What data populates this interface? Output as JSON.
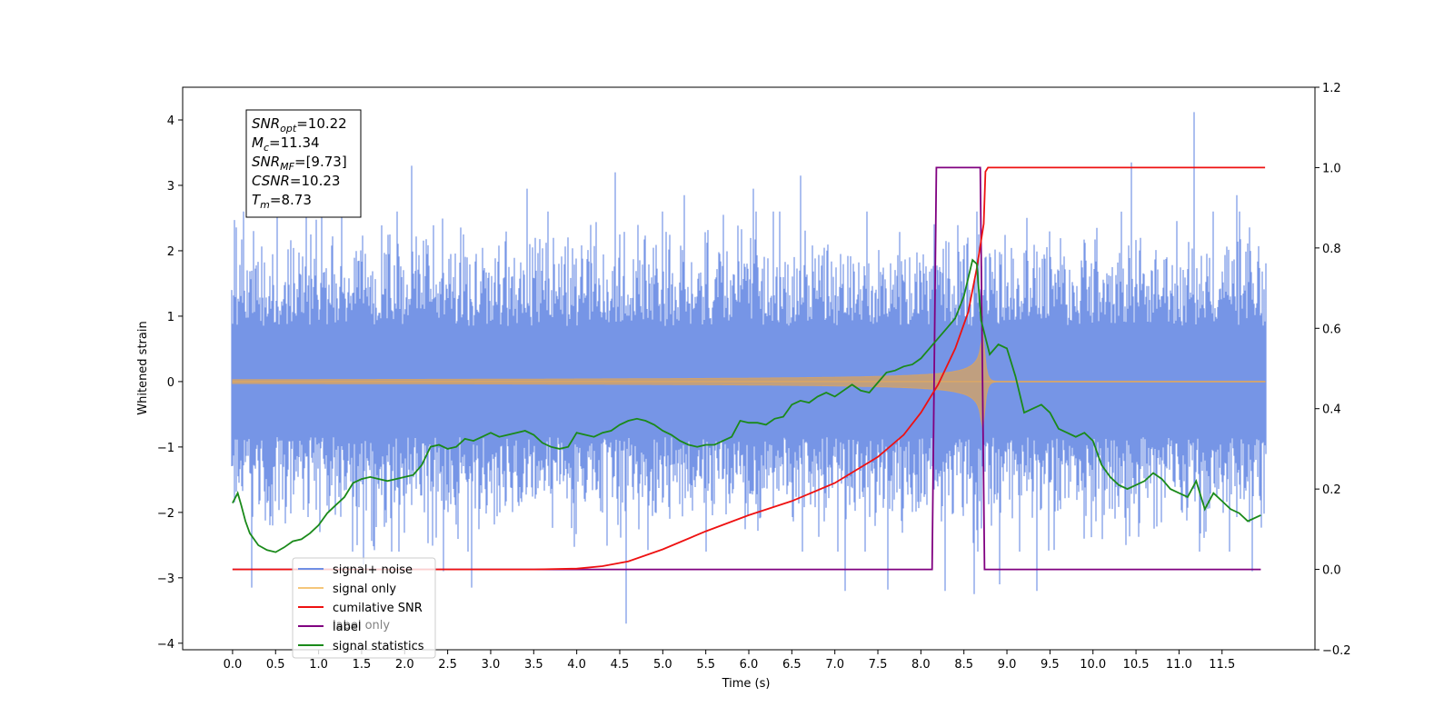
{
  "chart_data": {
    "type": "line",
    "xlabel": "Time (s)",
    "ylabel": "Whitened strain",
    "xlim": [
      -0.58,
      12.58
    ],
    "ylim_left": [
      -4.1,
      4.5
    ],
    "ylim_right": [
      -0.2,
      1.2
    ],
    "x_ticks": [
      0.0,
      0.5,
      1.0,
      1.5,
      2.0,
      2.5,
      3.0,
      3.5,
      4.0,
      4.5,
      5.0,
      5.5,
      6.0,
      6.5,
      7.0,
      7.5,
      8.0,
      8.5,
      9.0,
      9.5,
      10.0,
      10.5,
      11.0,
      11.5
    ],
    "x_tick_labels": [
      "0.0",
      "0.5",
      "1.0",
      "1.5",
      "2.0",
      "2.5",
      "3.0",
      "3.5",
      "4.0",
      "4.5",
      "5.0",
      "5.5",
      "6.0",
      "6.5",
      "7.0",
      "7.5",
      "8.0",
      "8.5",
      "9.0",
      "9.5",
      "10.0",
      "10.5",
      "11.0",
      "11.5"
    ],
    "y_ticks_left": [
      -4,
      -3,
      -2,
      -1,
      0,
      1,
      2,
      3,
      4
    ],
    "y_tick_labels_left": [
      "−4",
      "−3",
      "−2",
      "−1",
      "0",
      "1",
      "2",
      "3",
      "4"
    ],
    "y_ticks_right": [
      -0.2,
      0.0,
      0.2,
      0.4,
      0.6,
      0.8,
      1.0,
      1.2
    ],
    "y_tick_labels_right": [
      "−0.2",
      "0.0",
      "0.2",
      "0.4",
      "0.6",
      "0.8",
      "1.0",
      "1.2"
    ],
    "annotation": {
      "lines": [
        {
          "main": "SNR",
          "sub": "opt",
          "rest": "=10.22"
        },
        {
          "main": "M",
          "sub": "c",
          "rest": "=11.34"
        },
        {
          "main": "SNR",
          "sub": "MF",
          "rest": "=[9.73]"
        },
        {
          "main": "CSNR",
          "sub": "",
          "rest": "=10.23"
        },
        {
          "main": "T",
          "sub": "m",
          "rest": "=8.73"
        }
      ]
    },
    "legend": {
      "placement": "lower-left",
      "entries": [
        "signal+ noise",
        "signal only",
        "cumilative SNR",
        "label",
        "signal statistics"
      ]
    },
    "legend_ghost_text": "label only",
    "series": [
      {
        "name": "signal+ noise",
        "axis": "left",
        "color": "#6f8fe5",
        "kind": "noise",
        "x_range": [
          0.0,
          12.0
        ],
        "typical_range": [
          -1.7,
          1.7
        ],
        "spikes": [
          {
            "x": 0.02,
            "y": 2.47
          },
          {
            "x": 0.22,
            "y": -3.15
          },
          {
            "x": 0.52,
            "y": 2.6
          },
          {
            "x": 0.86,
            "y": 2.55
          },
          {
            "x": 1.27,
            "y": 2.65
          },
          {
            "x": 1.52,
            "y": -2.8
          },
          {
            "x": 2.08,
            "y": 3.3
          },
          {
            "x": 2.45,
            "y": -2.9
          },
          {
            "x": 2.78,
            "y": -3.15
          },
          {
            "x": 3.42,
            "y": 2.95
          },
          {
            "x": 4.45,
            "y": 3.2
          },
          {
            "x": 4.57,
            "y": -3.7
          },
          {
            "x": 5.25,
            "y": 2.85
          },
          {
            "x": 6.05,
            "y": 2.95
          },
          {
            "x": 6.6,
            "y": 3.15
          },
          {
            "x": 7.12,
            "y": -3.2
          },
          {
            "x": 7.62,
            "y": -3.18
          },
          {
            "x": 8.28,
            "y": -3.2
          },
          {
            "x": 8.62,
            "y": -3.25
          },
          {
            "x": 8.92,
            "y": -3.1
          },
          {
            "x": 9.35,
            "y": -3.2
          },
          {
            "x": 10.45,
            "y": 3.35
          },
          {
            "x": 11.17,
            "y": 4.12
          },
          {
            "x": 11.67,
            "y": 2.85
          },
          {
            "x": 11.85,
            "y": -2.9
          }
        ]
      },
      {
        "name": "signal only",
        "axis": "left",
        "color": "#f0a030",
        "kind": "chirp",
        "x_range": [
          0.0,
          12.0
        ],
        "merger_time": 8.73,
        "peak_amplitude": 0.72
      },
      {
        "name": "cumilative SNR",
        "axis": "right",
        "color": "#ee1111",
        "x": [
          0.0,
          3.5,
          4.0,
          4.3,
          4.6,
          5.0,
          5.5,
          6.0,
          6.5,
          7.0,
          7.5,
          7.8,
          8.0,
          8.2,
          8.4,
          8.55,
          8.65,
          8.73,
          8.75,
          8.78,
          12.0
        ],
        "y": [
          0.0,
          0.0,
          0.002,
          0.008,
          0.02,
          0.05,
          0.095,
          0.135,
          0.17,
          0.215,
          0.28,
          0.335,
          0.39,
          0.46,
          0.55,
          0.64,
          0.75,
          0.86,
          0.99,
          1.0,
          1.0
        ]
      },
      {
        "name": "label",
        "axis": "right",
        "color": "#800080",
        "x": [
          0.0,
          8.13,
          8.18,
          8.69,
          8.74,
          11.95
        ],
        "y": [
          0.0,
          0.0,
          1.0,
          1.0,
          0.0,
          0.0
        ]
      },
      {
        "name": "signal statistics",
        "axis": "right",
        "color": "#1a8a1a",
        "x": [
          0.0,
          0.06,
          0.1,
          0.15,
          0.2,
          0.3,
          0.4,
          0.5,
          0.6,
          0.7,
          0.8,
          0.9,
          1.0,
          1.1,
          1.2,
          1.3,
          1.4,
          1.5,
          1.6,
          1.7,
          1.8,
          1.9,
          2.0,
          2.1,
          2.2,
          2.3,
          2.4,
          2.5,
          2.6,
          2.7,
          2.8,
          2.9,
          3.0,
          3.1,
          3.2,
          3.3,
          3.4,
          3.5,
          3.6,
          3.7,
          3.8,
          3.9,
          4.0,
          4.1,
          4.2,
          4.3,
          4.4,
          4.5,
          4.6,
          4.7,
          4.8,
          4.9,
          5.0,
          5.1,
          5.2,
          5.3,
          5.4,
          5.5,
          5.6,
          5.7,
          5.8,
          5.9,
          6.0,
          6.1,
          6.2,
          6.3,
          6.4,
          6.5,
          6.6,
          6.7,
          6.8,
          6.9,
          7.0,
          7.1,
          7.2,
          7.3,
          7.4,
          7.5,
          7.6,
          7.7,
          7.8,
          7.9,
          8.0,
          8.1,
          8.2,
          8.3,
          8.4,
          8.5,
          8.6,
          8.65,
          8.7,
          8.8,
          8.9,
          9.0,
          9.1,
          9.2,
          9.3,
          9.4,
          9.5,
          9.6,
          9.7,
          9.8,
          9.9,
          10.0,
          10.1,
          10.2,
          10.3,
          10.4,
          10.5,
          10.6,
          10.7,
          10.8,
          10.9,
          11.0,
          11.1,
          11.2,
          11.3,
          11.4,
          11.5,
          11.6,
          11.7,
          11.8,
          11.95
        ],
        "y": [
          0.165,
          0.19,
          0.16,
          0.12,
          0.09,
          0.06,
          0.048,
          0.043,
          0.055,
          0.07,
          0.075,
          0.09,
          0.11,
          0.14,
          0.16,
          0.18,
          0.215,
          0.225,
          0.23,
          0.225,
          0.22,
          0.225,
          0.23,
          0.235,
          0.26,
          0.305,
          0.31,
          0.3,
          0.305,
          0.325,
          0.32,
          0.33,
          0.34,
          0.33,
          0.335,
          0.34,
          0.345,
          0.335,
          0.315,
          0.305,
          0.3,
          0.305,
          0.34,
          0.335,
          0.33,
          0.34,
          0.345,
          0.36,
          0.37,
          0.375,
          0.37,
          0.36,
          0.345,
          0.335,
          0.32,
          0.31,
          0.305,
          0.31,
          0.31,
          0.32,
          0.33,
          0.37,
          0.365,
          0.365,
          0.36,
          0.375,
          0.38,
          0.41,
          0.42,
          0.415,
          0.43,
          0.44,
          0.43,
          0.445,
          0.46,
          0.445,
          0.44,
          0.465,
          0.49,
          0.495,
          0.505,
          0.51,
          0.525,
          0.55,
          0.575,
          0.6,
          0.625,
          0.68,
          0.77,
          0.76,
          0.62,
          0.535,
          0.56,
          0.55,
          0.48,
          0.39,
          0.4,
          0.41,
          0.39,
          0.35,
          0.34,
          0.33,
          0.34,
          0.32,
          0.26,
          0.23,
          0.21,
          0.2,
          0.21,
          0.22,
          0.24,
          0.225,
          0.2,
          0.19,
          0.18,
          0.22,
          0.15,
          0.19,
          0.17,
          0.15,
          0.14,
          0.12,
          0.135
        ]
      }
    ]
  }
}
